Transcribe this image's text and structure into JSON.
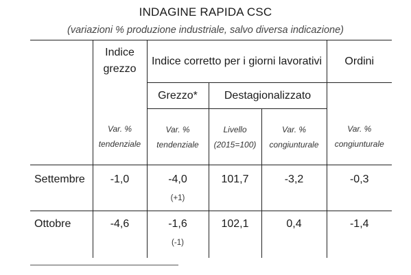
{
  "title": "INDAGINE RAPIDA CSC",
  "subtitle": "(variazioni % produzione industriale, salvo diversa indicazione)",
  "headers": {
    "indice_grezzo": "Indice grezzo",
    "indice_corretto": "Indice corretto per i giorni lavorativi",
    "ordini": "Ordini",
    "grezzo_star": "Grezzo*",
    "destagionalizzato": "Destagionalizzato"
  },
  "subheaders": {
    "col1_line1": "Var. %",
    "col1_line2": "tendenziale",
    "col2_line1": "Var. %",
    "col2_line2": "tendenziale",
    "col3_line1": "Livello",
    "col3_line2": "(2015=100)",
    "col4_line1": "Var. %",
    "col4_line2": "congiunturale",
    "col5_line1": "Var. %",
    "col5_line2": "congiunturale"
  },
  "rows": [
    {
      "label": "Settembre",
      "indice_grezzo": "-1,0",
      "grezzo_corretto": "-4,0",
      "grezzo_note": "(+1)",
      "livello": "101,7",
      "congiunturale": "-3,2",
      "ordini": "-0,3"
    },
    {
      "label": "Ottobre",
      "indice_grezzo": "-4,6",
      "grezzo_corretto": "-1,6",
      "grezzo_note": "(-1)",
      "livello": "102,1",
      "congiunturale": "0,4",
      "ordini": "-1,4"
    }
  ]
}
